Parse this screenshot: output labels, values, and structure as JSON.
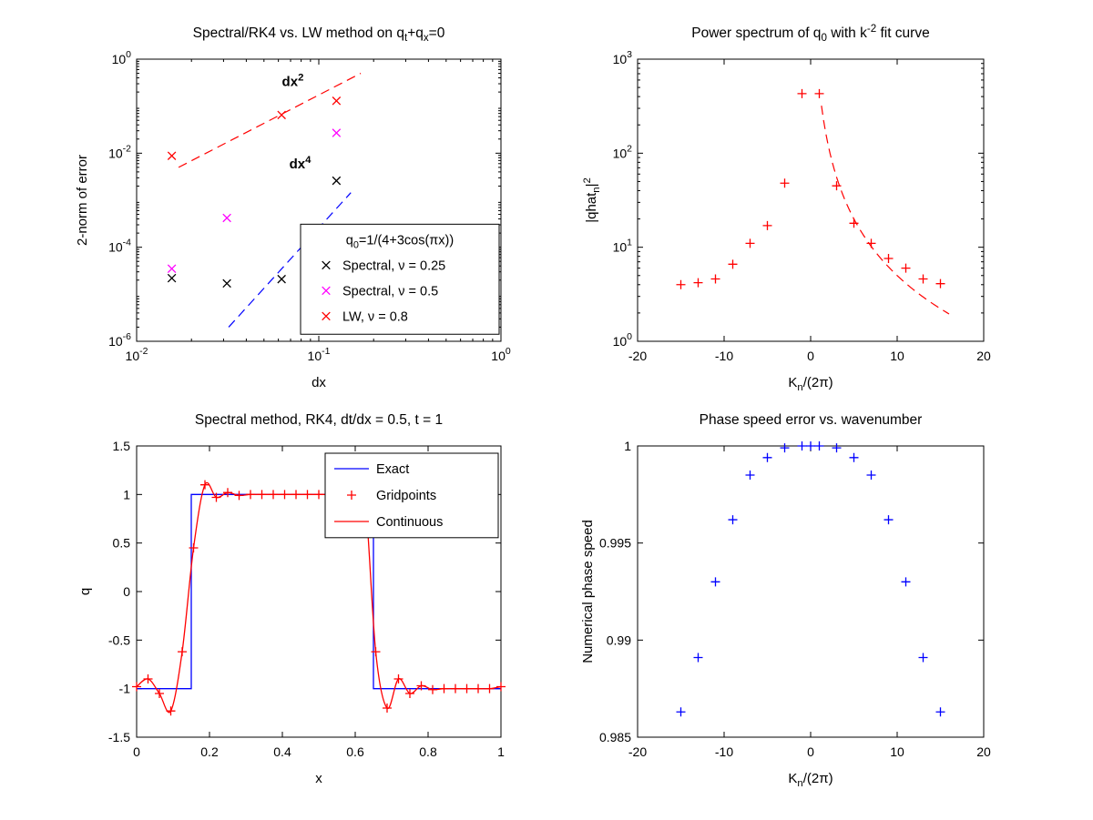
{
  "figure": {
    "background_color": "#ffffff",
    "colors": {
      "black": "#000000",
      "magenta": "#ff00ff",
      "red": "#ff0000",
      "blue": "#0000ff"
    }
  },
  "chart_data": [
    {
      "id": "convergence",
      "type": "scatter",
      "title": "Spectral/RK4 vs. LW method on q_t+q_x=0",
      "xlabel": "dx",
      "ylabel": "2-norm of error",
      "xscale": "log",
      "yscale": "log",
      "xlim": [
        0.01,
        1
      ],
      "ylim": [
        1e-06,
        1
      ],
      "xtick_exponents": [
        -2,
        -1,
        0
      ],
      "ytick_exponents": [
        -6,
        -4,
        -2,
        0
      ],
      "series": [
        {
          "name": "Spectral, ν = 0.25",
          "color": "#000000",
          "marker": "x",
          "x": [
            0.0156,
            0.0313,
            0.0625,
            0.125
          ],
          "y": [
            2.2e-05,
            1.7e-05,
            2.1e-05,
            0.0026
          ]
        },
        {
          "name": "Spectral, ν = 0.5",
          "color": "#ff00ff",
          "marker": "x",
          "x": [
            0.0156,
            0.0313,
            0.125
          ],
          "y": [
            3.5e-05,
            0.00042,
            0.027
          ]
        },
        {
          "name": "LW, ν = 0.8",
          "color": "#ff0000",
          "marker": "x",
          "x": [
            0.0156,
            0.0625,
            0.125
          ],
          "y": [
            0.0088,
            0.065,
            0.13
          ]
        }
      ],
      "guide_lines": [
        {
          "label": "dx^2",
          "color": "#ff0000",
          "x": [
            0.017,
            0.17
          ],
          "y": [
            0.005,
            0.5
          ],
          "label_x": 0.072,
          "label_y": 0.27
        },
        {
          "label": "dx^4",
          "color": "#0000ff",
          "x": [
            0.032,
            0.15
          ],
          "y": [
            2e-06,
            0.00145
          ],
          "label_x": 0.079,
          "label_y": 0.0048
        }
      ],
      "legend_title": "q_0=1/(4+3cos(πx))"
    },
    {
      "id": "power-spectrum",
      "type": "scatter",
      "title": "Power spectrum of q_0 with k^{-2} fit curve",
      "xlabel": "K_n/(2π)",
      "ylabel": "|qhat_n|^2",
      "xscale": "linear",
      "yscale": "log",
      "xlim": [
        -20,
        20
      ],
      "ylim": [
        1,
        1000
      ],
      "xticks": [
        -20,
        -10,
        0,
        10,
        20
      ],
      "ytick_exponents": [
        0,
        1,
        2,
        3
      ],
      "series": [
        {
          "name": "spectrum",
          "color": "#ff0000",
          "marker": "+",
          "x": [
            -15,
            -13,
            -11,
            -9,
            -7,
            -5,
            -3,
            -1,
            1,
            3,
            5,
            7,
            9,
            11,
            13,
            15
          ],
          "y": [
            4.0,
            4.2,
            4.6,
            6.6,
            11,
            17,
            48,
            430,
            430,
            45,
            18,
            11,
            7.6,
            6.0,
            4.6,
            4.1
          ]
        }
      ],
      "fit_curve": {
        "coefficient": 500,
        "exponent": -2,
        "x_range": [
          1.25,
          16
        ],
        "color": "#ff0000"
      }
    },
    {
      "id": "solution",
      "type": "line",
      "title": "Spectral method, RK4, dt/dx = 0.5, t = 1",
      "xlabel": "x",
      "ylabel": "q",
      "xscale": "linear",
      "yscale": "linear",
      "xlim": [
        0,
        1
      ],
      "ylim": [
        -1.5,
        1.5
      ],
      "xticks": [
        0,
        0.2,
        0.4,
        0.6,
        0.8,
        1
      ],
      "yticks": [
        -1.5,
        -1,
        -0.5,
        0,
        0.5,
        1,
        1.5
      ],
      "exact": {
        "name": "Exact",
        "color": "#0000ff",
        "x": [
          0,
          0.15,
          0.15,
          0.65,
          0.65,
          1
        ],
        "y": [
          -1,
          -1,
          1,
          1,
          -1,
          -1
        ]
      },
      "gridpoints": {
        "name": "Gridpoints",
        "color": "#ff0000",
        "marker": "+",
        "x": [
          0,
          0.03125,
          0.0625,
          0.09375,
          0.125,
          0.15625,
          0.1875,
          0.21875,
          0.25,
          0.28125,
          0.3125,
          0.34375,
          0.375,
          0.40625,
          0.4375,
          0.46875,
          0.5,
          0.53125,
          0.5625,
          0.59375,
          0.625,
          0.65625,
          0.6875,
          0.71875,
          0.75,
          0.78125,
          0.8125,
          0.84375,
          0.875,
          0.90625,
          0.9375,
          0.96875,
          1
        ],
        "y": [
          -0.98,
          -0.9,
          -1.05,
          -1.23,
          -0.62,
          0.45,
          1.1,
          0.97,
          1.02,
          0.99,
          1,
          1,
          1,
          1,
          1,
          1,
          1,
          1,
          1,
          1.02,
          1.05,
          -0.62,
          -1.2,
          -0.9,
          -1.05,
          -0.97,
          -1.01,
          -1,
          -1,
          -1,
          -1,
          -1,
          -0.98
        ]
      },
      "continuous": {
        "name": "Continuous",
        "color": "#ff0000"
      }
    },
    {
      "id": "phase-speed",
      "type": "scatter",
      "title": "Phase speed error vs. wavenumber",
      "xlabel": "K_n/(2π)",
      "ylabel": "Numerical phase speed",
      "xscale": "linear",
      "yscale": "linear",
      "xlim": [
        -20,
        20
      ],
      "ylim": [
        0.985,
        1
      ],
      "xticks": [
        -20,
        -10,
        0,
        10,
        20
      ],
      "yticks": [
        0.985,
        0.99,
        0.995,
        1
      ],
      "series": [
        {
          "name": "phase speed",
          "color": "#0000ff",
          "marker": "+",
          "x": [
            -15,
            -13,
            -11,
            -9,
            -7,
            -5,
            -3,
            -1,
            0,
            1,
            3,
            5,
            7,
            9,
            11,
            13,
            15
          ],
          "y": [
            0.9863,
            0.9891,
            0.993,
            0.9962,
            0.9985,
            0.9994,
            0.9999,
            1,
            1,
            1,
            0.9999,
            0.9994,
            0.9985,
            0.9962,
            0.993,
            0.9891,
            0.9863
          ]
        }
      ]
    }
  ]
}
